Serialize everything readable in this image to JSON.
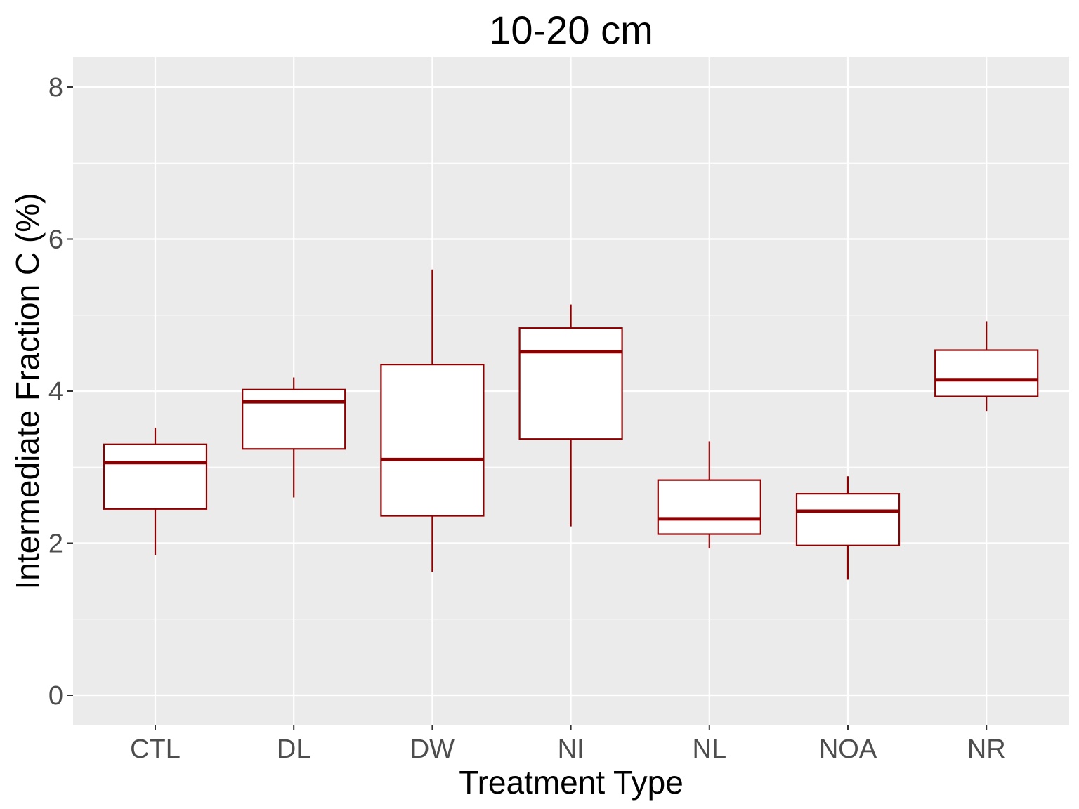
{
  "chart_data": {
    "type": "boxplot",
    "title": "10-20 cm",
    "xlabel": "Treatment Type",
    "ylabel": "Intermediate Fraction C (%)",
    "ylim": [
      -0.4,
      8.4
    ],
    "yticks": [
      0,
      2,
      4,
      6,
      8
    ],
    "grid": true,
    "legend": "none",
    "colors": {
      "panel_background": "#ebebeb",
      "grid": "#ffffff",
      "box_stroke": "#8b0000",
      "box_fill": "#ffffff"
    },
    "categories": [
      "CTL",
      "DL",
      "DW",
      "NI",
      "NL",
      "NOA",
      "NR"
    ],
    "boxes": [
      {
        "category": "CTL",
        "min": 1.84,
        "q1": 2.45,
        "median": 3.06,
        "q3": 3.3,
        "max": 3.52
      },
      {
        "category": "DL",
        "min": 2.6,
        "q1": 3.24,
        "median": 3.86,
        "q3": 4.02,
        "max": 4.18
      },
      {
        "category": "DW",
        "min": 1.62,
        "q1": 2.36,
        "median": 3.1,
        "q3": 4.35,
        "max": 5.6
      },
      {
        "category": "NI",
        "min": 2.22,
        "q1": 3.37,
        "median": 4.52,
        "q3": 4.83,
        "max": 5.14
      },
      {
        "category": "NL",
        "min": 1.93,
        "q1": 2.12,
        "median": 2.32,
        "q3": 2.83,
        "max": 3.34
      },
      {
        "category": "NOA",
        "min": 1.52,
        "q1": 1.97,
        "median": 2.42,
        "q3": 2.65,
        "max": 2.88
      },
      {
        "category": "NR",
        "min": 3.74,
        "q1": 3.93,
        "median": 4.15,
        "q3": 4.54,
        "max": 4.92
      }
    ]
  }
}
